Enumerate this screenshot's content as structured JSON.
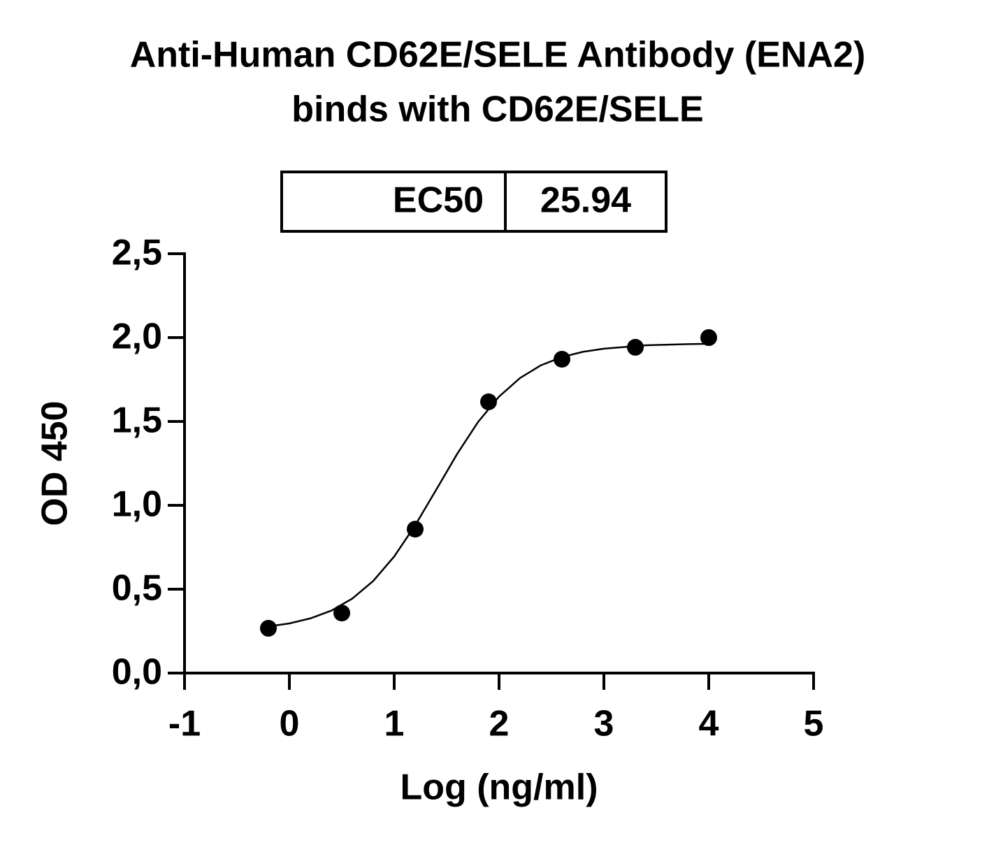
{
  "chart_data": {
    "type": "scatter",
    "title": "Anti-Human CD62E/SELE Antibody (ENA2)",
    "subtitle": "binds with CD62E/SELE",
    "xlabel": "Log (ng/ml)",
    "ylabel": "OD 450",
    "ec50_label": "EC50",
    "ec50_value": 25.94,
    "x": [
      -0.2,
      0.5,
      1.2,
      1.9,
      2.6,
      3.3,
      4.0
    ],
    "values": [
      0.267,
      0.358,
      0.858,
      1.617,
      1.871,
      1.942,
      2.0
    ],
    "color": "#000000",
    "fit": {
      "x": [
        -0.2,
        0,
        0.2,
        0.4,
        0.6,
        0.8,
        1.0,
        1.2,
        1.4,
        1.6,
        1.8,
        2.0,
        2.2,
        2.4,
        2.6,
        2.8,
        3.0,
        3.4,
        3.8,
        4.0
      ],
      "values": [
        0.278,
        0.296,
        0.326,
        0.372,
        0.444,
        0.549,
        0.695,
        0.881,
        1.092,
        1.306,
        1.497,
        1.648,
        1.759,
        1.835,
        1.884,
        1.915,
        1.934,
        1.954,
        1.961,
        1.963
      ]
    },
    "xlim": [
      -1,
      5
    ],
    "xticks": [
      -1,
      0,
      1,
      2,
      3,
      4,
      5
    ],
    "ylim": [
      0,
      2.5
    ],
    "yticks": [
      {
        "value": 0,
        "label": "0,0"
      },
      {
        "value": 0.5,
        "label": "0,5"
      },
      {
        "value": 1.0,
        "label": "1,0"
      },
      {
        "value": 1.5,
        "label": "1,5"
      },
      {
        "value": 2.0,
        "label": "2,0"
      },
      {
        "value": 2.5,
        "label": "2,5"
      }
    ]
  }
}
